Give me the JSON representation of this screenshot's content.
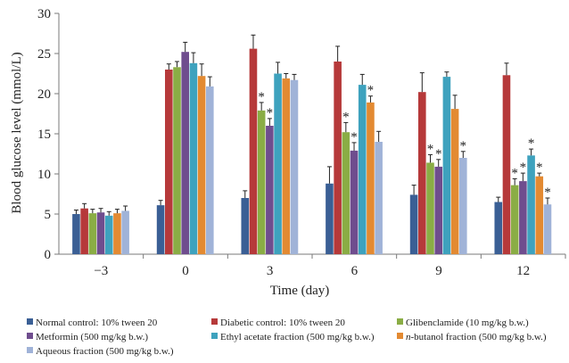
{
  "chart_data": {
    "type": "bar",
    "title": "",
    "xlabel": "Time (day)",
    "ylabel": "Blood glucose level (mmol/L)",
    "ylim": [
      0,
      30
    ],
    "yticks": [
      0,
      5,
      10,
      15,
      20,
      25,
      30
    ],
    "categories": [
      "−3",
      "0",
      "3",
      "6",
      "9",
      "12"
    ],
    "grid": false,
    "legend_position": "bottom",
    "significance_marker": "*",
    "series": [
      {
        "name": "Normal control: 10% tween 20",
        "color": "#3a5f95",
        "values": [
          5.0,
          6.1,
          7.0,
          8.8,
          7.4,
          6.5
        ],
        "errors": [
          0.5,
          0.6,
          0.9,
          2.1,
          1.2,
          0.6
        ],
        "significant": [
          false,
          false,
          false,
          false,
          false,
          false
        ]
      },
      {
        "name": "Diabetic control: 10% tween 20",
        "color": "#b6393a",
        "values": [
          5.7,
          23.0,
          25.6,
          24.0,
          20.2,
          22.3
        ],
        "errors": [
          0.6,
          0.7,
          1.7,
          1.9,
          2.4,
          1.5
        ],
        "significant": [
          false,
          false,
          false,
          false,
          false,
          false
        ]
      },
      {
        "name": "Glibenclamide (10 mg/kg b.w.)",
        "color": "#8aad45",
        "values": [
          5.1,
          23.3,
          17.9,
          15.2,
          11.4,
          8.6
        ],
        "errors": [
          0.5,
          0.7,
          1.0,
          1.2,
          1.0,
          0.8
        ],
        "significant": [
          false,
          false,
          true,
          true,
          true,
          true
        ]
      },
      {
        "name": "Metformin (500 mg/kg b.w.)",
        "color": "#6f4d8e",
        "values": [
          5.2,
          25.2,
          16.0,
          12.9,
          10.9,
          9.1
        ],
        "errors": [
          0.5,
          1.2,
          0.9,
          1.0,
          0.9,
          1.0
        ],
        "significant": [
          false,
          false,
          true,
          true,
          true,
          true
        ]
      },
      {
        "name": "Ethyl acetate fraction (500 mg/kg b.w.)",
        "color": "#3ea2be",
        "values": [
          4.8,
          23.8,
          22.5,
          21.1,
          22.1,
          12.3
        ],
        "errors": [
          0.5,
          1.3,
          1.4,
          1.3,
          0.6,
          0.8
        ],
        "significant": [
          false,
          false,
          false,
          false,
          false,
          true
        ]
      },
      {
        "name": "n-butanol fraction (500 mg/kg b.w.)",
        "color": "#e38a32",
        "values": [
          5.1,
          22.2,
          21.9,
          18.9,
          18.1,
          9.7
        ],
        "errors": [
          0.5,
          1.5,
          0.6,
          0.8,
          1.7,
          0.4
        ],
        "significant": [
          false,
          false,
          false,
          true,
          false,
          true
        ]
      },
      {
        "name": "Aqueous fraction (500 mg/kg b.w.)",
        "color": "#a0b3d8",
        "values": [
          5.4,
          20.9,
          21.7,
          14.0,
          12.0,
          6.2
        ],
        "errors": [
          0.6,
          1.2,
          0.7,
          1.3,
          0.8,
          0.8
        ],
        "significant": [
          false,
          false,
          false,
          false,
          true,
          true
        ]
      }
    ]
  }
}
